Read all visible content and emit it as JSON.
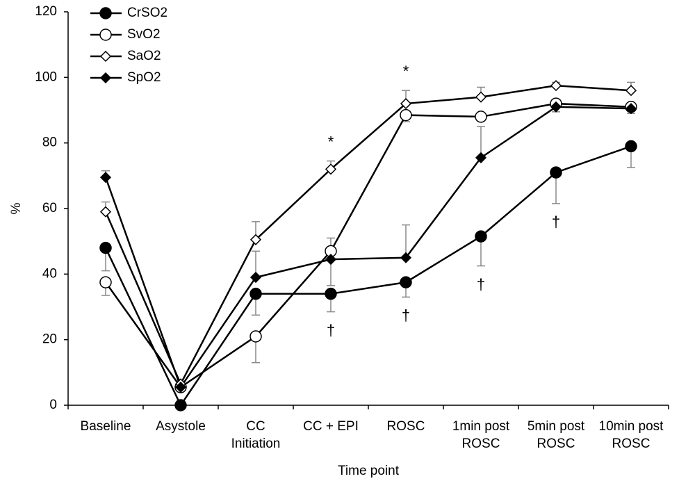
{
  "chart_data": {
    "type": "line",
    "x_label": "Time point",
    "y_label": "%",
    "categories": [
      "Baseline",
      "Asystole",
      "CC\nInitiation",
      "CC + EPI",
      "ROSC",
      "1min post\nROSC",
      "5min post\nROSC",
      "10min post\nROSC"
    ],
    "ylim": [
      0,
      120
    ],
    "yticks": [
      0,
      20,
      40,
      60,
      80,
      100,
      120
    ],
    "grid": false,
    "legend": "top-left",
    "error_color": "#888888",
    "series": [
      {
        "name": "CrSO2",
        "color": "#000000",
        "marker": "circle",
        "filled": true,
        "values": [
          48,
          0,
          34,
          34,
          37.5,
          51.5,
          71,
          79
        ],
        "errors_up": [
          null,
          null,
          null,
          null,
          null,
          null,
          null,
          null
        ],
        "errors_down": [
          7,
          null,
          6.5,
          5.5,
          4.5,
          9,
          9.5,
          6.5
        ]
      },
      {
        "name": "SvO2",
        "color": "#000000",
        "marker": "circle",
        "filled": false,
        "values": [
          37.5,
          5.5,
          21,
          47,
          88.5,
          88,
          92,
          91
        ],
        "errors_up": [
          null,
          null,
          null,
          4,
          null,
          null,
          null,
          null
        ],
        "errors_down": [
          4,
          null,
          8,
          null,
          2,
          null,
          null,
          2
        ]
      },
      {
        "name": "SaO2",
        "color": "#000000",
        "marker": "diamond",
        "filled": false,
        "values": [
          59,
          6.5,
          50.5,
          72,
          92,
          94,
          97.5,
          96
        ],
        "errors_up": [
          3,
          null,
          5.5,
          2.5,
          4,
          3,
          1,
          2.5
        ],
        "errors_down": [
          null,
          null,
          null,
          null,
          null,
          null,
          null,
          null
        ]
      },
      {
        "name": "SpO2",
        "color": "#000000",
        "marker": "diamond",
        "filled": true,
        "values": [
          69.5,
          5.5,
          39,
          44.5,
          45,
          75.5,
          91,
          90.5
        ],
        "errors_up": [
          2,
          null,
          8,
          null,
          10,
          9.5,
          null,
          null
        ],
        "errors_down": [
          null,
          null,
          null,
          8,
          null,
          null,
          1.5,
          null
        ]
      }
    ],
    "annotations": [
      {
        "text": "*",
        "category": "CC + EPI",
        "above": "SaO2"
      },
      {
        "text": "*",
        "category": "ROSC",
        "above": "SaO2"
      },
      {
        "text": "†",
        "category": "CC + EPI",
        "below": "CrSO2"
      },
      {
        "text": "†",
        "category": "ROSC",
        "below": "CrSO2"
      },
      {
        "text": "†",
        "category": "1min post\nROSC",
        "below": "CrSO2"
      },
      {
        "text": "†",
        "category": "5min post\nROSC",
        "below": "CrSO2"
      }
    ]
  }
}
